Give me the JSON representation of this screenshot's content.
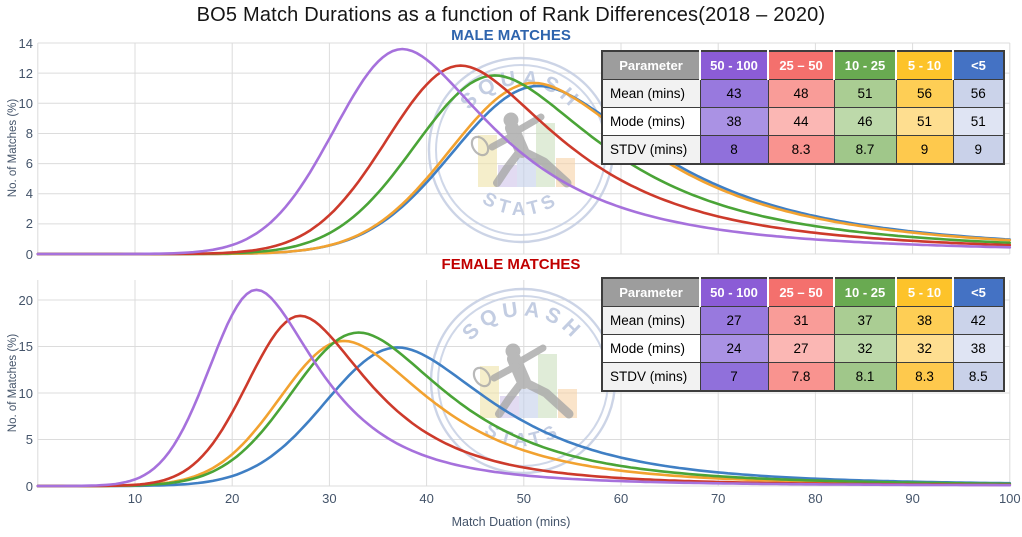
{
  "page": {
    "title": "BO5 Match Durations as a function of Rank Differences(2018 – 2020)",
    "xlabel": "Match Duation (mins)"
  },
  "watermark": {
    "top_text": "SQUASH",
    "bottom_text": "STATS"
  },
  "colors": {
    "grid": "#DCDCDC",
    "axis_text": "#44546A",
    "male_title": "#2E64AD",
    "female_title": "#C00000",
    "watermark": "#C3CDE2"
  },
  "chart_data": [
    {
      "type": "line",
      "title": "MALE MATCHES",
      "title_color": "#2E64AD",
      "ylabel": "No. of Matches (%)",
      "xlabel": "Match Duation (mins)",
      "xlim": [
        0,
        100
      ],
      "ylim": [
        0,
        14
      ],
      "yticks": [
        0,
        2,
        4,
        6,
        8,
        10,
        12,
        14
      ],
      "xticks": [
        10,
        20,
        30,
        40,
        50,
        60,
        70,
        80,
        90,
        100
      ],
      "grid": true,
      "legend_position": "table-top-right",
      "series": [
        {
          "name": "50 - 100",
          "color": "#A671DC",
          "mean": 43,
          "mode": 38,
          "stdv": 8,
          "curve": {
            "mode": 37.5,
            "peak": 13.6,
            "sigma_left": 7.0,
            "tail_alpha": 0.27
          }
        },
        {
          "name": "25 – 50",
          "color": "#CD3A2B",
          "mean": 48,
          "mode": 44,
          "stdv": 8.3,
          "curve": {
            "mode": 43.5,
            "peak": 12.5,
            "sigma_left": 7.6,
            "tail_alpha": 0.27
          }
        },
        {
          "name": "10 - 25",
          "color": "#4AA437",
          "mean": 51,
          "mode": 46,
          "stdv": 8.7,
          "curve": {
            "mode": 47.0,
            "peak": 11.85,
            "sigma_left": 8.2,
            "tail_alpha": 0.27
          }
        },
        {
          "name": "5 - 10",
          "color": "#F2A230",
          "mean": 56,
          "mode": 51,
          "stdv": 9,
          "curve": {
            "mode": 51.0,
            "peak": 11.35,
            "sigma_left": 8.6,
            "tail_alpha": 0.27
          }
        },
        {
          "name": "<5",
          "color": "#3F7FC4",
          "mean": 56,
          "mode": 51,
          "stdv": 9,
          "curve": {
            "mode": 51.5,
            "peak": 11.15,
            "sigma_left": 8.8,
            "tail_alpha": 0.27
          }
        }
      ],
      "table": {
        "header": [
          "Parameter",
          "50 - 100",
          "25 – 50",
          "10 - 25",
          "5 - 10",
          "<5"
        ],
        "header_bg": [
          "#9D9D9D",
          "#8B5CD6",
          "#F4706D",
          "#69AA51",
          "#FDC32A",
          "#4472C4"
        ],
        "rows": [
          {
            "cells": [
              "Mean (mins)",
              "43",
              "48",
              "51",
              "56",
              "56"
            ],
            "bg": [
              "#F2F2F2",
              "#9879DE",
              "#F99C98",
              "#AACD93",
              "#FECE55",
              "#CBD3EA"
            ]
          },
          {
            "cells": [
              "Mode (mins)",
              "38",
              "44",
              "46",
              "51",
              "51"
            ],
            "bg": [
              "#FFFFFF",
              "#AA92E4",
              "#FBB7B4",
              "#BDD9AA",
              "#FEDE90",
              "#DFE4F3"
            ]
          },
          {
            "cells": [
              "STDV (mins)",
              "8",
              "8.3",
              "8.7",
              "9",
              "9"
            ],
            "bg": [
              "#F2F2F2",
              "#9070DB",
              "#F9938F",
              "#A0C78A",
              "#FEC94D",
              "#C9D1E9"
            ]
          }
        ]
      }
    },
    {
      "type": "line",
      "title": "FEMALE MATCHES",
      "title_color": "#C00000",
      "ylabel": "No. of Matches (%)",
      "xlabel": "Match Duation (mins)",
      "xlim": [
        0,
        100
      ],
      "ylim": [
        0,
        22
      ],
      "yticks": [
        0,
        5,
        10,
        15,
        20
      ],
      "xticks": [
        10,
        20,
        30,
        40,
        50,
        60,
        70,
        80,
        90,
        100
      ],
      "grid": true,
      "legend_position": "table-top-right",
      "series": [
        {
          "name": "50 - 100",
          "color": "#A671DC",
          "mean": 27,
          "mode": 24,
          "stdv": 7,
          "curve": {
            "mode": 22.5,
            "peak": 21.1,
            "sigma_left": 4.8,
            "tail_alpha": 0.24
          }
        },
        {
          "name": "25 – 50",
          "color": "#CD3A2B",
          "mean": 31,
          "mode": 27,
          "stdv": 7.8,
          "curve": {
            "mode": 27.0,
            "peak": 18.3,
            "sigma_left": 5.4,
            "tail_alpha": 0.24
          }
        },
        {
          "name": "10 - 25",
          "color": "#4AA437",
          "mean": 37,
          "mode": 32,
          "stdv": 8.1,
          "curve": {
            "mode": 33.0,
            "peak": 16.5,
            "sigma_left": 6.9,
            "tail_alpha": 0.24
          }
        },
        {
          "name": "5 - 10",
          "color": "#F2A230",
          "mean": 38,
          "mode": 32,
          "stdv": 8.3,
          "curve": {
            "mode": 31.5,
            "peak": 15.6,
            "sigma_left": 6.6,
            "tail_alpha": 0.24
          }
        },
        {
          "name": "<5",
          "color": "#3F7FC4",
          "mean": 42,
          "mode": 38,
          "stdv": 8.5,
          "curve": {
            "mode": 37.0,
            "peak": 14.9,
            "sigma_left": 7.4,
            "tail_alpha": 0.24
          }
        }
      ],
      "table": {
        "header": [
          "Parameter",
          "50 - 100",
          "25 – 50",
          "10 - 25",
          "5 - 10",
          "<5"
        ],
        "header_bg": [
          "#9D9D9D",
          "#8B5CD6",
          "#F4706D",
          "#69AA51",
          "#FDC32A",
          "#4472C4"
        ],
        "rows": [
          {
            "cells": [
              "Mean (mins)",
              "27",
              "31",
              "37",
              "38",
              "42"
            ],
            "bg": [
              "#F2F2F2",
              "#9879DE",
              "#F99C98",
              "#AACD93",
              "#FECE55",
              "#CBD3EA"
            ]
          },
          {
            "cells": [
              "Mode (mins)",
              "24",
              "27",
              "32",
              "32",
              "38"
            ],
            "bg": [
              "#FFFFFF",
              "#AA92E4",
              "#FBB7B4",
              "#BDD9AA",
              "#FEDE90",
              "#DFE4F3"
            ]
          },
          {
            "cells": [
              "STDV (mins)",
              "7",
              "7.8",
              "8.1",
              "8.3",
              "8.5"
            ],
            "bg": [
              "#F2F2F2",
              "#9070DB",
              "#F9938F",
              "#A0C78A",
              "#FEC94D",
              "#C9D1E9"
            ]
          }
        ]
      }
    }
  ]
}
